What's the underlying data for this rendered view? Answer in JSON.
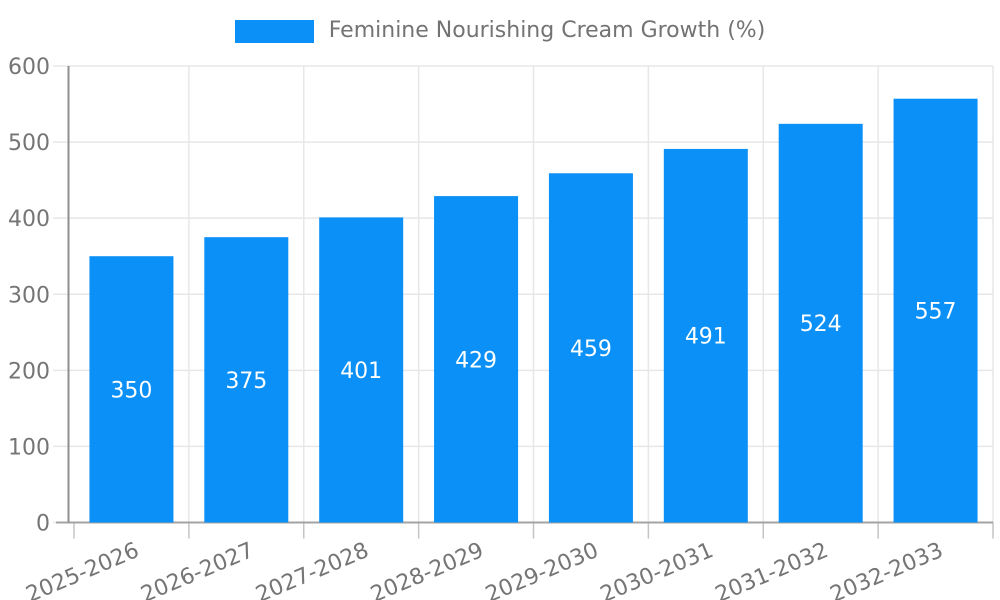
{
  "legend": {
    "label": "Feminine Nourishing Cream Growth (%)"
  },
  "chart_data": {
    "type": "bar",
    "title": "Feminine Nourishing Cream Growth (%)",
    "categories": [
      "2025-2026",
      "2026-2027",
      "2027-2028",
      "2028-2029",
      "2029-2030",
      "2030-2031",
      "2031-2032",
      "2032-2033"
    ],
    "values": [
      350,
      375,
      401,
      429,
      459,
      491,
      524,
      557
    ],
    "xlabel": "",
    "ylabel": "",
    "ylim": [
      0,
      600
    ],
    "yticks": [
      0,
      100,
      200,
      300,
      400,
      500,
      600
    ],
    "grid": true,
    "legend_position": "top",
    "value_labels_inside_bars": true,
    "colors": {
      "bar": "#0a90f6",
      "grid": "#e7e7e7",
      "axis": "#a3a3a3",
      "tick": "#c4c4c4",
      "tick_label": "#757575",
      "value_label": "#ffffff",
      "legend_text": "#737373"
    }
  }
}
